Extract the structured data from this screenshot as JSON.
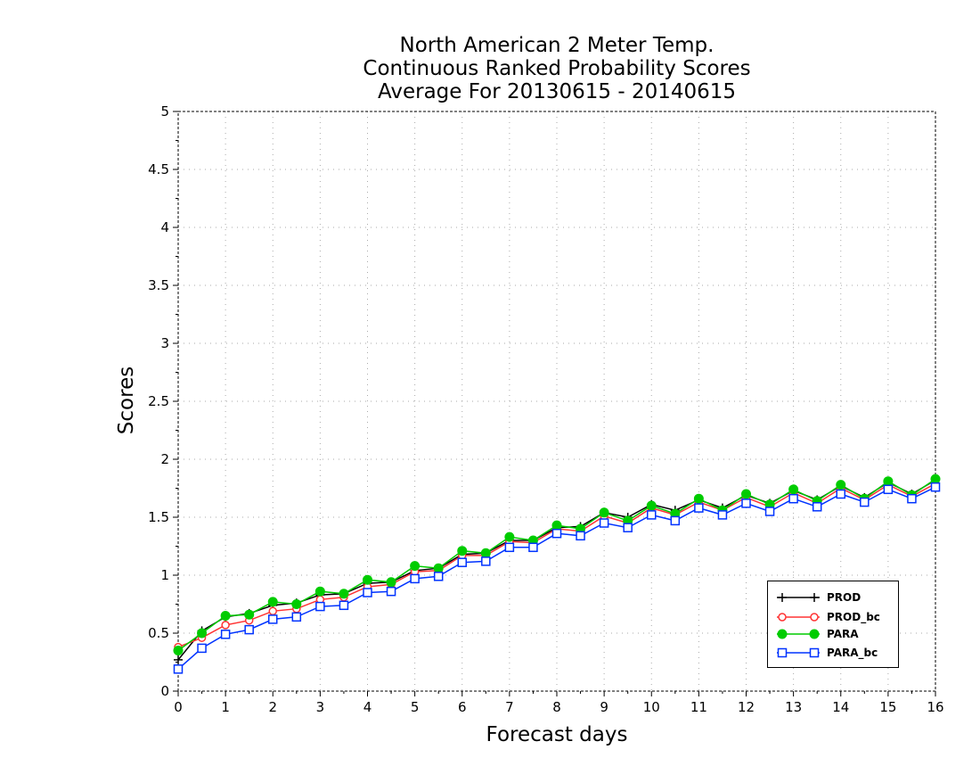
{
  "title": {
    "line1": "North American 2 Meter Temp.",
    "line2": "Continuous Ranked Probability Scores",
    "line3": "Average For 20130615 - 20140615"
  },
  "chart_data": {
    "type": "line",
    "xlabel": "Forecast days",
    "ylabel": "Scores",
    "xlim": [
      0,
      16
    ],
    "ylim": [
      0,
      5
    ],
    "xticks": [
      "0",
      "1",
      "2",
      "3",
      "4",
      "5",
      "6",
      "7",
      "8",
      "9",
      "10",
      "11",
      "12",
      "13",
      "14",
      "15",
      "16"
    ],
    "yticks": [
      "0",
      "0.5",
      "1",
      "1.5",
      "2",
      "2.5",
      "3",
      "3.5",
      "4",
      "4.5",
      "5"
    ],
    "grid": true,
    "legend_position": "bottom-right",
    "x": [
      0,
      0.5,
      1,
      1.5,
      2,
      2.5,
      3,
      3.5,
      4,
      4.5,
      5,
      5.5,
      6,
      6.5,
      7,
      7.5,
      8,
      8.5,
      9,
      9.5,
      10,
      10.5,
      11,
      11.5,
      12,
      12.5,
      13,
      13.5,
      14,
      14.5,
      15,
      15.5,
      16
    ],
    "series": [
      {
        "name": "PROD",
        "color": "#000000",
        "marker": "plus",
        "values": [
          0.27,
          0.52,
          0.64,
          0.67,
          0.74,
          0.76,
          0.83,
          0.84,
          0.93,
          0.94,
          1.04,
          1.06,
          1.18,
          1.19,
          1.3,
          1.3,
          1.41,
          1.42,
          1.54,
          1.5,
          1.61,
          1.56,
          1.65,
          1.58,
          1.69,
          1.62,
          1.73,
          1.65,
          1.77,
          1.67,
          1.8,
          1.7,
          1.82
        ]
      },
      {
        "name": "PROD_bc",
        "color": "#ff3333",
        "marker": "open-circle",
        "values": [
          0.38,
          0.46,
          0.57,
          0.61,
          0.69,
          0.71,
          0.79,
          0.81,
          0.9,
          0.92,
          1.03,
          1.04,
          1.17,
          1.17,
          1.29,
          1.28,
          1.4,
          1.38,
          1.51,
          1.45,
          1.58,
          1.52,
          1.63,
          1.56,
          1.67,
          1.59,
          1.71,
          1.62,
          1.75,
          1.65,
          1.78,
          1.68,
          1.79
        ]
      },
      {
        "name": "PARA",
        "color": "#00cc00",
        "marker": "filled-circle",
        "values": [
          0.35,
          0.5,
          0.65,
          0.66,
          0.77,
          0.75,
          0.86,
          0.84,
          0.96,
          0.94,
          1.08,
          1.06,
          1.21,
          1.19,
          1.33,
          1.3,
          1.43,
          1.4,
          1.54,
          1.47,
          1.6,
          1.53,
          1.66,
          1.56,
          1.7,
          1.61,
          1.74,
          1.64,
          1.78,
          1.66,
          1.81,
          1.69,
          1.83
        ]
      },
      {
        "name": "PARA_bc",
        "color": "#0033ff",
        "marker": "open-square",
        "values": [
          0.19,
          0.37,
          0.49,
          0.53,
          0.62,
          0.64,
          0.73,
          0.74,
          0.85,
          0.86,
          0.97,
          0.99,
          1.11,
          1.12,
          1.24,
          1.24,
          1.36,
          1.34,
          1.45,
          1.41,
          1.52,
          1.47,
          1.58,
          1.52,
          1.62,
          1.55,
          1.66,
          1.59,
          1.7,
          1.63,
          1.74,
          1.66,
          1.76
        ]
      }
    ]
  }
}
